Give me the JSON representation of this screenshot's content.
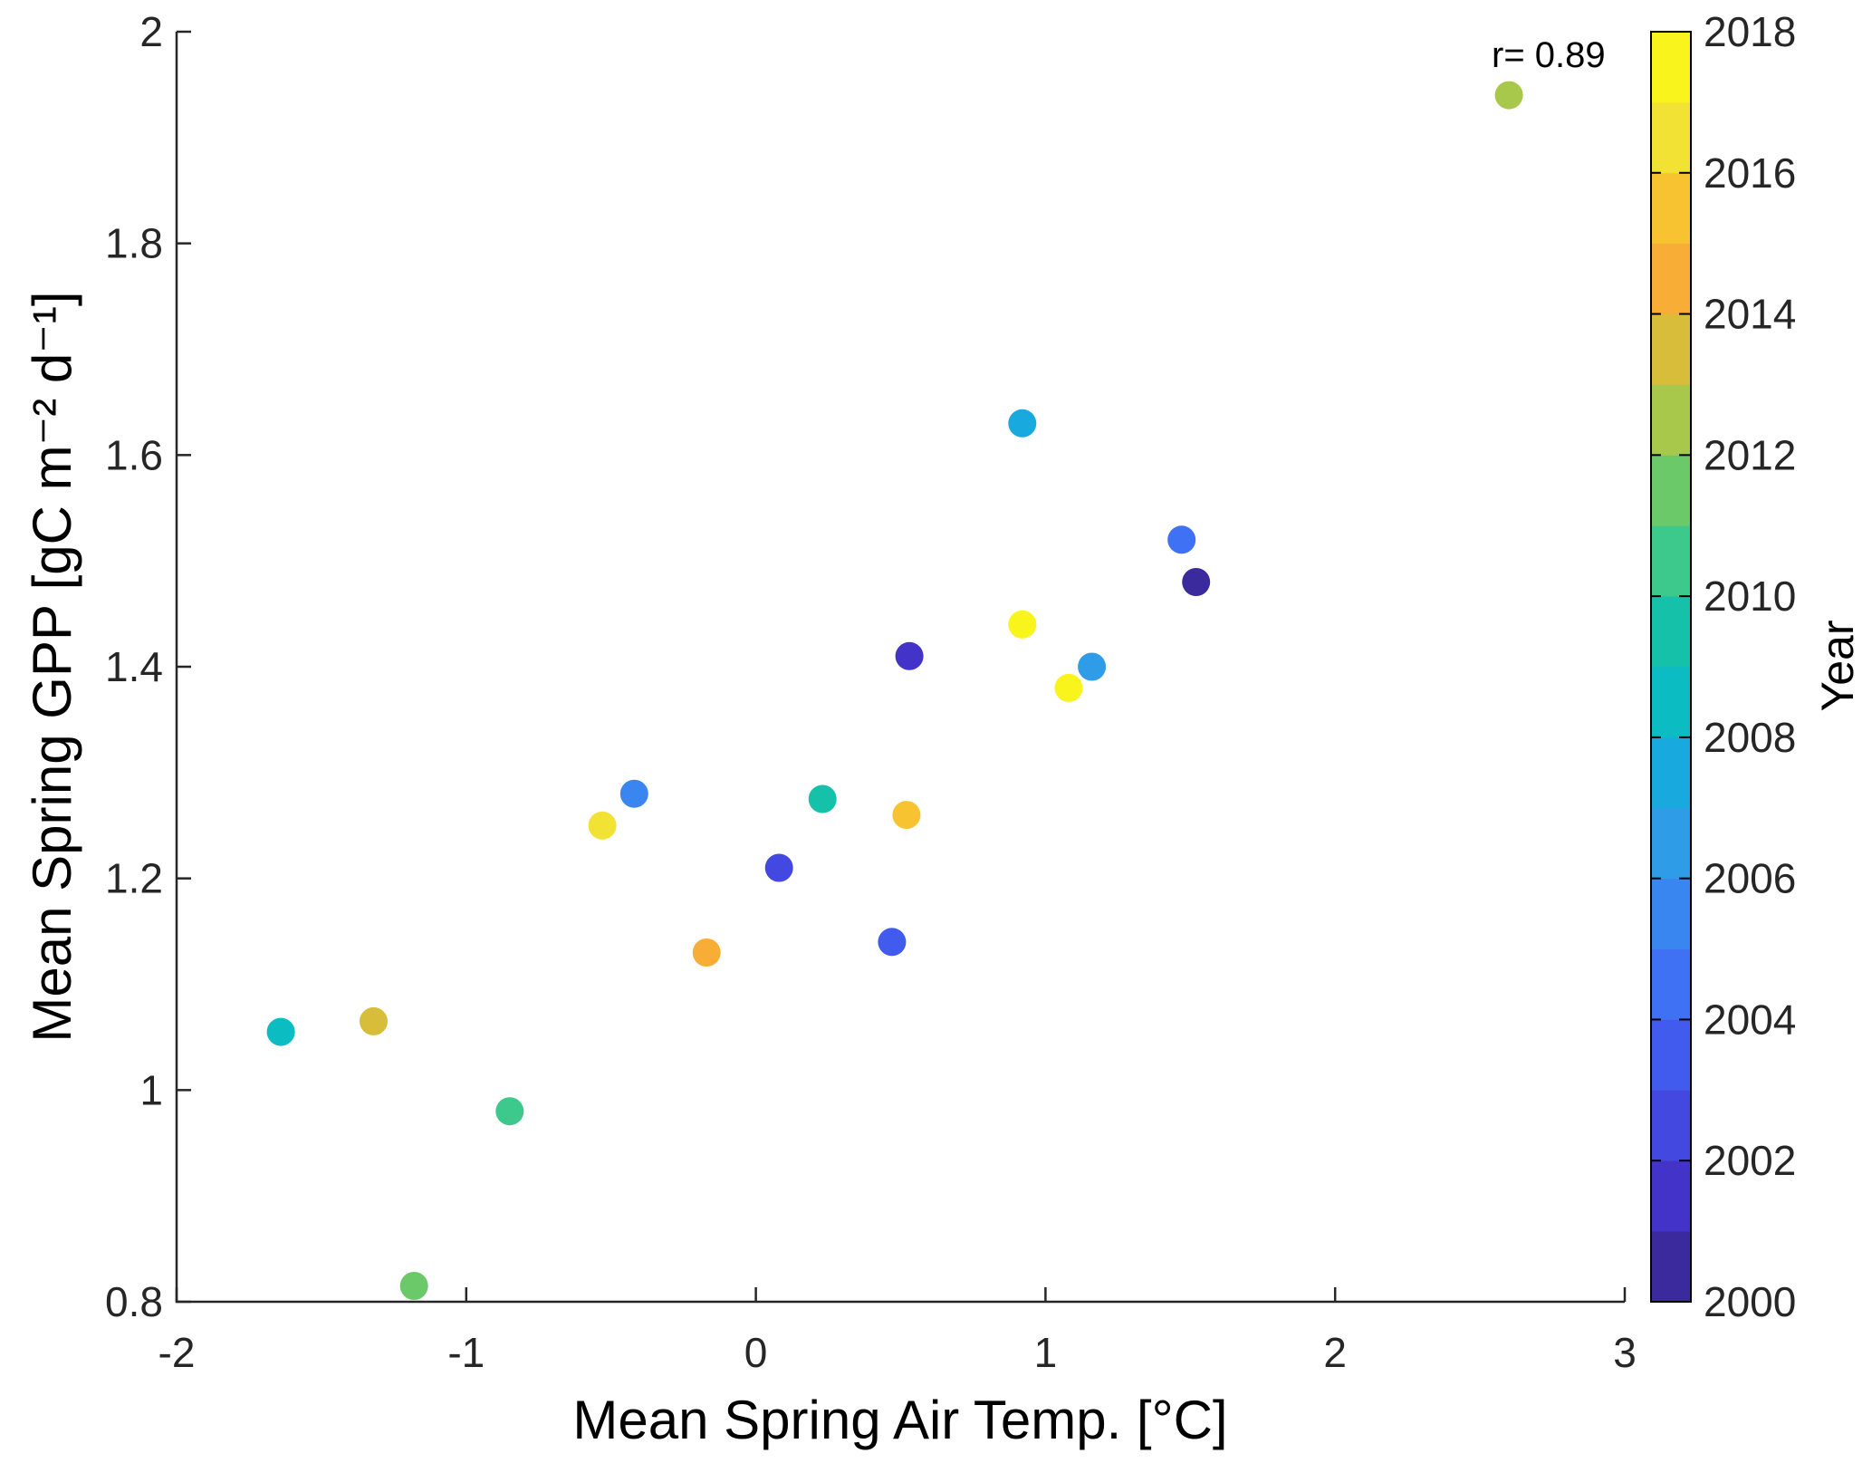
{
  "chart_data": {
    "type": "scatter",
    "xlabel": "Mean Spring Air Temp. [°C]",
    "ylabel": "Mean Spring GPP [gC m⁻² d⁻¹]",
    "annotation": "r= 0.89",
    "xlim": [
      -2,
      3
    ],
    "ylim": [
      0.8,
      2
    ],
    "xticks": [
      -2,
      -1,
      0,
      1,
      2,
      3
    ],
    "xtick_labels": [
      "-2",
      "-1",
      "0",
      "1",
      "2",
      "3"
    ],
    "yticks": [
      0.8,
      1,
      1.2,
      1.4,
      1.6,
      1.8,
      2
    ],
    "ytick_labels": [
      "0.8",
      "1",
      "1.2",
      "1.4",
      "1.6",
      "1.8",
      "2"
    ],
    "grid": false,
    "marker": "filled-circle",
    "axis_color": "#262626",
    "text_color": "#000000",
    "background": "#ffffff",
    "colorbar": {
      "title": "Year",
      "min": 2000,
      "max": 2018,
      "tick_years": [
        2000,
        2002,
        2004,
        2006,
        2008,
        2010,
        2012,
        2014,
        2016,
        2018
      ],
      "tick_labels": [
        "2000",
        "2002",
        "2004",
        "2006",
        "2008",
        "2010",
        "2012",
        "2014",
        "2016",
        "2018"
      ],
      "block_colors_bottom_to_top": [
        "#3a2a9d",
        "#4433c8",
        "#4348e0",
        "#415bef",
        "#3f71f5",
        "#3a86f0",
        "#2f9ce8",
        "#18aadf",
        "#0cbcc3",
        "#15c2a9",
        "#3ec98c",
        "#6cc96a",
        "#a8c84b",
        "#d8bd3b",
        "#f7ad36",
        "#f8c331",
        "#f2e233",
        "#f9f41b"
      ]
    },
    "points": [
      {
        "year": 2000,
        "x": 1.52,
        "y": 1.48,
        "color": "#3a2a9d"
      },
      {
        "year": 2001,
        "x": 0.53,
        "y": 1.41,
        "color": "#4433c8"
      },
      {
        "year": 2002,
        "x": 0.08,
        "y": 1.21,
        "color": "#4348e0"
      },
      {
        "year": 2003,
        "x": 0.47,
        "y": 1.14,
        "color": "#415bef"
      },
      {
        "year": 2004,
        "x": 1.47,
        "y": 1.52,
        "color": "#3f71f5"
      },
      {
        "year": 2005,
        "x": -0.42,
        "y": 1.28,
        "color": "#3a86f0"
      },
      {
        "year": 2006,
        "x": 1.16,
        "y": 1.4,
        "color": "#2f9ce8"
      },
      {
        "year": 2007,
        "x": 0.92,
        "y": 1.63,
        "color": "#18aadf"
      },
      {
        "year": 2008,
        "x": -1.64,
        "y": 1.055,
        "color": "#0cbcc3"
      },
      {
        "year": 2009,
        "x": 0.23,
        "y": 1.275,
        "color": "#15c2a9"
      },
      {
        "year": 2010,
        "x": -0.85,
        "y": 0.98,
        "color": "#3ec98c"
      },
      {
        "year": 2011,
        "x": -1.18,
        "y": 0.815,
        "color": "#6cc96a"
      },
      {
        "year": 2012,
        "x": 2.6,
        "y": 1.94,
        "color": "#a8c84b"
      },
      {
        "year": 2013,
        "x": -1.32,
        "y": 1.065,
        "color": "#d8bd3b"
      },
      {
        "year": 2014,
        "x": -0.17,
        "y": 1.13,
        "color": "#f7ad36"
      },
      {
        "year": 2015,
        "x": 0.52,
        "y": 1.26,
        "color": "#f8c331"
      },
      {
        "year": 2016,
        "x": -0.53,
        "y": 1.25,
        "color": "#f2e233"
      },
      {
        "year": 2017,
        "x": 0.92,
        "y": 1.44,
        "color": "#f9f41b"
      },
      {
        "year": 2018,
        "x": 1.08,
        "y": 1.38,
        "color": "#f9f41b"
      }
    ]
  }
}
